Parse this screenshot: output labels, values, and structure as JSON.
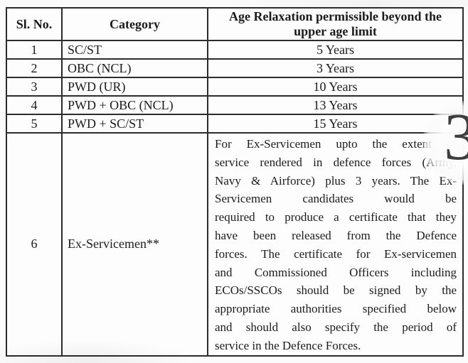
{
  "table": {
    "columns": {
      "sl_no": "Sl. No.",
      "category": "Category",
      "relaxation": "Age Relaxation permissible beyond the upper age limit"
    },
    "rows": [
      {
        "sl": "1",
        "category": "SC/ST",
        "relaxation": "5 Years"
      },
      {
        "sl": "2",
        "category": "OBC (NCL)",
        "relaxation": "3 Years"
      },
      {
        "sl": "3",
        "category": "PWD (UR)",
        "relaxation": "10 Years"
      },
      {
        "sl": "4",
        "category": "PWD + OBC (NCL)",
        "relaxation": "13 Years"
      },
      {
        "sl": "5",
        "category": "PWD + SC/ST",
        "relaxation": "15 Years"
      },
      {
        "sl": "6",
        "category": "Ex-Servicemen**",
        "relaxation_lines": [
          "For Ex-Servicemen upto the extent of",
          "service rendered in defence forces (Army,",
          "Navy & Airforce) plus 3 years. The Ex-",
          "Servicemen candidates would be",
          "required to produce a certificate that they",
          "have been released from the Defence",
          "forces. The certificate for Ex-servicemen",
          "and Commissioned Officers including",
          "ECOs/SSCOs should be signed by the",
          "appropriate authorities specified below",
          "and should also specify the period of",
          "service in the Defence Forces."
        ]
      }
    ]
  },
  "overlay": {
    "page_indicator": "3"
  },
  "colors": {
    "border": "#2c2c2c",
    "text": "#1b1b1b",
    "page_background": "#fbfbfb",
    "indicator_digit": "#3f3f3f"
  }
}
